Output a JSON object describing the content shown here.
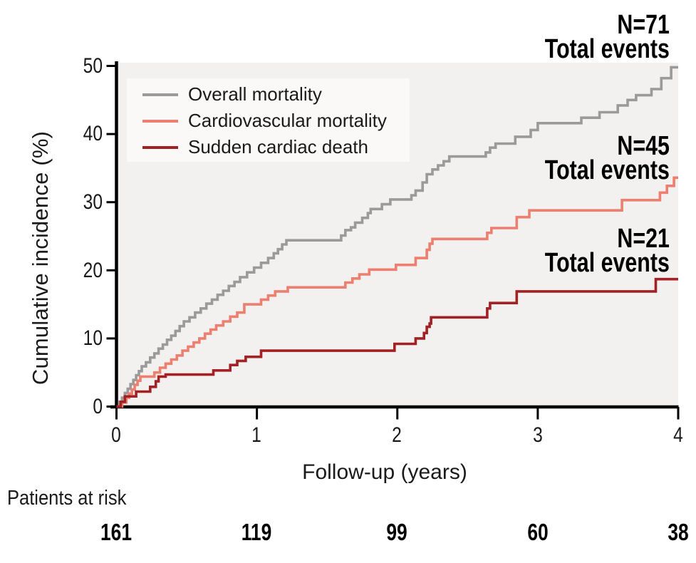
{
  "axes": {
    "y": {
      "title": "Cumulative incidence (%)",
      "tick_labels": [
        "0",
        "10",
        "20",
        "30",
        "40",
        "50"
      ],
      "range": [
        0,
        50
      ]
    },
    "x": {
      "title": "Follow-up (years)",
      "tick_labels": [
        "0",
        "1",
        "2",
        "3",
        "4"
      ],
      "range": [
        0,
        4
      ]
    }
  },
  "annotations": [
    {
      "n_label": "N=71",
      "caption": "Total events"
    },
    {
      "n_label": "N=45",
      "caption": "Total events"
    },
    {
      "n_label": "N=21",
      "caption": "Total events"
    }
  ],
  "patients_at_risk": {
    "label": "Patients at risk",
    "values": [
      "161",
      "119",
      "99",
      "60",
      "38"
    ]
  },
  "colors": {
    "overall_mortality": "#9a9a9a",
    "cardiovascular_mortality": "#ec7f6f",
    "sudden_cardiac_death": "#a32024",
    "axis": "#000000",
    "plot_background": "#f2f1ef",
    "legend_background": "#faf9f8"
  },
  "chart_data": {
    "type": "line",
    "style": "step-after",
    "xlabel": "Follow-up (years)",
    "ylabel": "Cumulative incidence (%)",
    "xlim": [
      0,
      4
    ],
    "ylim": [
      0,
      50
    ],
    "xticks": [
      0,
      1,
      2,
      3,
      4
    ],
    "yticks": [
      0,
      10,
      20,
      30,
      40,
      50
    ],
    "grid": false,
    "legend_position": "upper left",
    "series": [
      {
        "name": "Overall mortality",
        "color": "#9a9a9a",
        "total_events": 71,
        "end_value_pct": 49.8,
        "points": [
          [
            0,
            0
          ],
          [
            0.02,
            0.7
          ],
          [
            0.04,
            1.3
          ],
          [
            0.06,
            2.0
          ],
          [
            0.08,
            2.6
          ],
          [
            0.1,
            3.3
          ],
          [
            0.12,
            3.9
          ],
          [
            0.14,
            4.6
          ],
          [
            0.16,
            5.2
          ],
          [
            0.18,
            5.9
          ],
          [
            0.21,
            6.5
          ],
          [
            0.24,
            7.2
          ],
          [
            0.27,
            7.8
          ],
          [
            0.3,
            8.5
          ],
          [
            0.33,
            9.1
          ],
          [
            0.36,
            9.8
          ],
          [
            0.39,
            10.4
          ],
          [
            0.42,
            11.1
          ],
          [
            0.45,
            11.8
          ],
          [
            0.48,
            12.5
          ],
          [
            0.52,
            13.1
          ],
          [
            0.56,
            13.8
          ],
          [
            0.6,
            14.4
          ],
          [
            0.64,
            15.1
          ],
          [
            0.68,
            15.7
          ],
          [
            0.72,
            16.4
          ],
          [
            0.76,
            17.0
          ],
          [
            0.8,
            17.7
          ],
          [
            0.84,
            18.3
          ],
          [
            0.88,
            19.0
          ],
          [
            0.93,
            19.7
          ],
          [
            0.98,
            20.4
          ],
          [
            1.03,
            21.1
          ],
          [
            1.08,
            21.8
          ],
          [
            1.12,
            22.5
          ],
          [
            1.15,
            23.1
          ],
          [
            1.18,
            23.8
          ],
          [
            1.21,
            24.4
          ],
          [
            1.6,
            25.1
          ],
          [
            1.63,
            25.9
          ],
          [
            1.67,
            26.3
          ],
          [
            1.7,
            27.0
          ],
          [
            1.75,
            27.7
          ],
          [
            1.79,
            28.4
          ],
          [
            1.81,
            29.0
          ],
          [
            1.89,
            29.7
          ],
          [
            1.95,
            30.4
          ],
          [
            2.1,
            31.0
          ],
          [
            2.13,
            31.7
          ],
          [
            2.18,
            32.9
          ],
          [
            2.21,
            34.1
          ],
          [
            2.25,
            34.8
          ],
          [
            2.29,
            35.4
          ],
          [
            2.33,
            36.0
          ],
          [
            2.37,
            36.7
          ],
          [
            2.63,
            37.3
          ],
          [
            2.66,
            38.0
          ],
          [
            2.7,
            38.6
          ],
          [
            2.84,
            39.6
          ],
          [
            2.95,
            40.6
          ],
          [
            3.0,
            41.6
          ],
          [
            3.31,
            42.4
          ],
          [
            3.44,
            43.2
          ],
          [
            3.57,
            44.2
          ],
          [
            3.64,
            45.0
          ],
          [
            3.7,
            45.7
          ],
          [
            3.81,
            46.6
          ],
          [
            3.88,
            48.2
          ],
          [
            3.95,
            49.8
          ]
        ]
      },
      {
        "name": "Cardiovascular mortality",
        "color": "#ec7f6f",
        "total_events": 45,
        "end_value_pct": 33.6,
        "points": [
          [
            0,
            0
          ],
          [
            0.04,
            0.6
          ],
          [
            0.07,
            1.3
          ],
          [
            0.09,
            1.9
          ],
          [
            0.11,
            2.5
          ],
          [
            0.13,
            3.2
          ],
          [
            0.15,
            3.8
          ],
          [
            0.17,
            4.4
          ],
          [
            0.27,
            5.0
          ],
          [
            0.31,
            5.7
          ],
          [
            0.35,
            6.3
          ],
          [
            0.39,
            6.9
          ],
          [
            0.43,
            7.5
          ],
          [
            0.47,
            8.2
          ],
          [
            0.51,
            8.8
          ],
          [
            0.55,
            9.4
          ],
          [
            0.59,
            10.0
          ],
          [
            0.63,
            10.7
          ],
          [
            0.67,
            11.3
          ],
          [
            0.71,
            11.9
          ],
          [
            0.76,
            12.5
          ],
          [
            0.81,
            13.2
          ],
          [
            0.86,
            13.8
          ],
          [
            0.91,
            15.0
          ],
          [
            1.03,
            15.7
          ],
          [
            1.08,
            16.3
          ],
          [
            1.13,
            16.9
          ],
          [
            1.22,
            17.5
          ],
          [
            1.63,
            18.2
          ],
          [
            1.68,
            18.8
          ],
          [
            1.73,
            19.4
          ],
          [
            1.8,
            20.1
          ],
          [
            1.99,
            20.8
          ],
          [
            2.13,
            21.8
          ],
          [
            2.21,
            23.0
          ],
          [
            2.23,
            23.9
          ],
          [
            2.25,
            24.6
          ],
          [
            2.64,
            25.5
          ],
          [
            2.67,
            26.2
          ],
          [
            2.85,
            27.8
          ],
          [
            2.94,
            28.8
          ],
          [
            3.6,
            30.3
          ],
          [
            3.87,
            31.4
          ],
          [
            3.92,
            32.4
          ],
          [
            3.97,
            33.6
          ]
        ]
      },
      {
        "name": "Sudden cardiac death",
        "color": "#a32024",
        "total_events": 21,
        "end_value_pct": 18.7,
        "points": [
          [
            0,
            0
          ],
          [
            0.03,
            0.7
          ],
          [
            0.06,
            1.5
          ],
          [
            0.14,
            2.2
          ],
          [
            0.24,
            2.9
          ],
          [
            0.28,
            3.7
          ],
          [
            0.3,
            4.4
          ],
          [
            0.35,
            4.7
          ],
          [
            0.69,
            5.3
          ],
          [
            0.81,
            6.1
          ],
          [
            0.86,
            6.7
          ],
          [
            0.92,
            7.3
          ],
          [
            1.03,
            8.2
          ],
          [
            1.98,
            9.2
          ],
          [
            2.13,
            10.0
          ],
          [
            2.19,
            10.8
          ],
          [
            2.21,
            11.7
          ],
          [
            2.23,
            12.2
          ],
          [
            2.24,
            13.1
          ],
          [
            2.64,
            14.4
          ],
          [
            2.66,
            15.2
          ],
          [
            2.85,
            16.9
          ],
          [
            3.84,
            18.7
          ]
        ]
      }
    ],
    "patients_at_risk": {
      "times": [
        0,
        1,
        2,
        3,
        4
      ],
      "counts": [
        161,
        119,
        99,
        60,
        38
      ]
    }
  }
}
